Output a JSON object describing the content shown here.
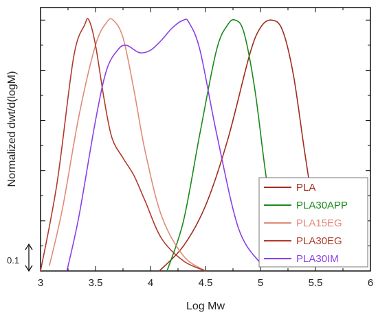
{
  "chart_data": {
    "type": "line",
    "title": "",
    "xlabel": "Log Mw",
    "ylabel": "Normalized dwt/d(logM)",
    "xlim": [
      3,
      6
    ],
    "ylim": [
      0,
      1.05
    ],
    "xticks": [
      "3",
      "3.5",
      "4",
      "4.5",
      "5",
      "5.5",
      "6"
    ],
    "ytick_labels_shown": false,
    "scale_annotation": {
      "label": "0.1",
      "dy": 0.1
    },
    "legend_position": "bottom-right",
    "series": [
      {
        "name": "PLA",
        "color": "#a02c1e",
        "x": [
          4.08,
          4.3,
          4.5,
          4.7,
          4.9,
          5.0,
          5.1,
          5.2,
          5.3,
          5.4,
          5.5,
          5.58
        ],
        "y": [
          0.0,
          0.1,
          0.26,
          0.52,
          0.86,
          0.97,
          1.0,
          0.96,
          0.78,
          0.48,
          0.2,
          0.02
        ]
      },
      {
        "name": "PLA30APP",
        "color": "#1a8a1a",
        "x": [
          4.15,
          4.3,
          4.45,
          4.6,
          4.7,
          4.77,
          4.85,
          4.95,
          5.05,
          5.15,
          5.22
        ],
        "y": [
          0.0,
          0.2,
          0.55,
          0.88,
          0.98,
          1.0,
          0.95,
          0.72,
          0.38,
          0.12,
          0.03
        ]
      },
      {
        "name": "PLA15EG",
        "color": "#e08b76",
        "x": [
          3.08,
          3.2,
          3.35,
          3.5,
          3.6,
          3.66,
          3.75,
          3.85,
          3.95,
          4.1,
          4.3,
          4.5
        ],
        "y": [
          0.02,
          0.25,
          0.62,
          0.9,
          0.99,
          1.0,
          0.93,
          0.72,
          0.48,
          0.22,
          0.06,
          0.0
        ]
      },
      {
        "name": "PLA30EG",
        "color": "#b03a2a",
        "x": [
          3.0,
          3.15,
          3.3,
          3.4,
          3.44,
          3.5,
          3.58,
          3.65,
          3.75,
          3.85,
          3.95,
          4.1,
          4.3,
          4.5
        ],
        "y": [
          0.0,
          0.35,
          0.85,
          0.98,
          1.0,
          0.9,
          0.68,
          0.53,
          0.45,
          0.38,
          0.28,
          0.13,
          0.04,
          0.0
        ]
      },
      {
        "name": "PLA30IM",
        "color": "#8a3fe8",
        "x": [
          3.24,
          3.35,
          3.5,
          3.6,
          3.7,
          3.78,
          3.9,
          4.0,
          4.1,
          4.2,
          4.3,
          4.35,
          4.45,
          4.6,
          4.8,
          5.0
        ],
        "y": [
          0.0,
          0.22,
          0.6,
          0.8,
          0.88,
          0.9,
          0.87,
          0.88,
          0.92,
          0.97,
          1.0,
          0.99,
          0.88,
          0.55,
          0.17,
          0.03
        ]
      }
    ]
  }
}
